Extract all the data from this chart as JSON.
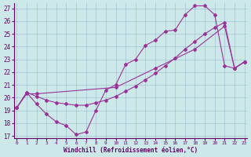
{
  "xlabel": "Windchill (Refroidissement éolien,°C)",
  "bg_color": "#cce8e8",
  "line_color": "#993399",
  "grid_color": "#99bbcc",
  "xlim": [
    -0.3,
    23.3
  ],
  "ylim": [
    16.8,
    27.4
  ],
  "xticks": [
    0,
    1,
    2,
    3,
    4,
    5,
    6,
    7,
    8,
    9,
    10,
    11,
    12,
    13,
    14,
    15,
    16,
    17,
    18,
    19,
    20,
    21,
    22,
    23
  ],
  "yticks": [
    17,
    18,
    19,
    20,
    21,
    22,
    23,
    24,
    25,
    26,
    27
  ],
  "line1_x": [
    0,
    1,
    2,
    3,
    4,
    5,
    6,
    7,
    8,
    9,
    10,
    11,
    12,
    13,
    14,
    15,
    16,
    17,
    18,
    19,
    20,
    21,
    22,
    23
  ],
  "line1_y": [
    19.2,
    20.4,
    19.5,
    18.7,
    18.1,
    17.8,
    17.1,
    17.3,
    19.0,
    20.6,
    21.0,
    22.6,
    23.0,
    24.1,
    24.5,
    25.2,
    25.3,
    26.5,
    27.2,
    27.2,
    26.5,
    22.5,
    22.3,
    22.8
  ],
  "line2_x": [
    0,
    1,
    2,
    10,
    14,
    18,
    21,
    22,
    23
  ],
  "line2_y": [
    19.2,
    20.3,
    20.3,
    20.8,
    22.3,
    23.8,
    25.6,
    22.3,
    22.8
  ],
  "line3_x": [
    0,
    1,
    2,
    3,
    4,
    5,
    6,
    7,
    8,
    9,
    10,
    11,
    12,
    13,
    14,
    15,
    16,
    17,
    18,
    19,
    20,
    21,
    22,
    23
  ],
  "line3_y": [
    19.2,
    20.4,
    20.1,
    19.8,
    19.6,
    19.5,
    19.4,
    19.4,
    19.6,
    19.8,
    20.1,
    20.5,
    20.9,
    21.4,
    21.9,
    22.5,
    23.1,
    23.8,
    24.4,
    25.0,
    25.5,
    25.9,
    22.3,
    22.8
  ]
}
